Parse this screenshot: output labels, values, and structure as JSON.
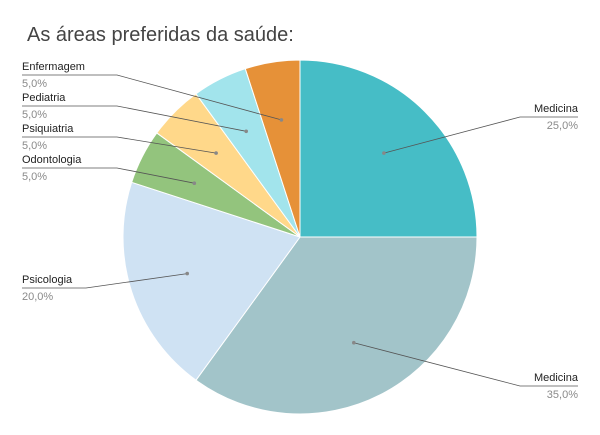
{
  "chart_data": {
    "type": "pie",
    "title": "As áreas preferidas da saúde:",
    "slices": [
      {
        "name": "Medicina",
        "value": 25,
        "value_label": "25,0%",
        "color": "#46bdc6"
      },
      {
        "name": "Medicina",
        "value": 35,
        "value_label": "35,0%",
        "color": "#a2c4c9"
      },
      {
        "name": "Psicologia",
        "value": 20,
        "value_label": "20,0%",
        "color": "#cfe2f3"
      },
      {
        "name": "Odontologia",
        "value": 5,
        "value_label": "5,0%",
        "color": "#93c47d"
      },
      {
        "name": "Psiquiatria",
        "value": 5,
        "value_label": "5,0%",
        "color": "#ffd88a"
      },
      {
        "name": "Pediatria",
        "value": 5,
        "value_label": "5,0%",
        "color": "#a2e4ec"
      },
      {
        "name": "Enfermagem",
        "value": 5,
        "value_label": "5,0%",
        "color": "#e69138"
      }
    ],
    "start_angle_deg": 0,
    "direction": "clockwise",
    "legend": "none"
  }
}
